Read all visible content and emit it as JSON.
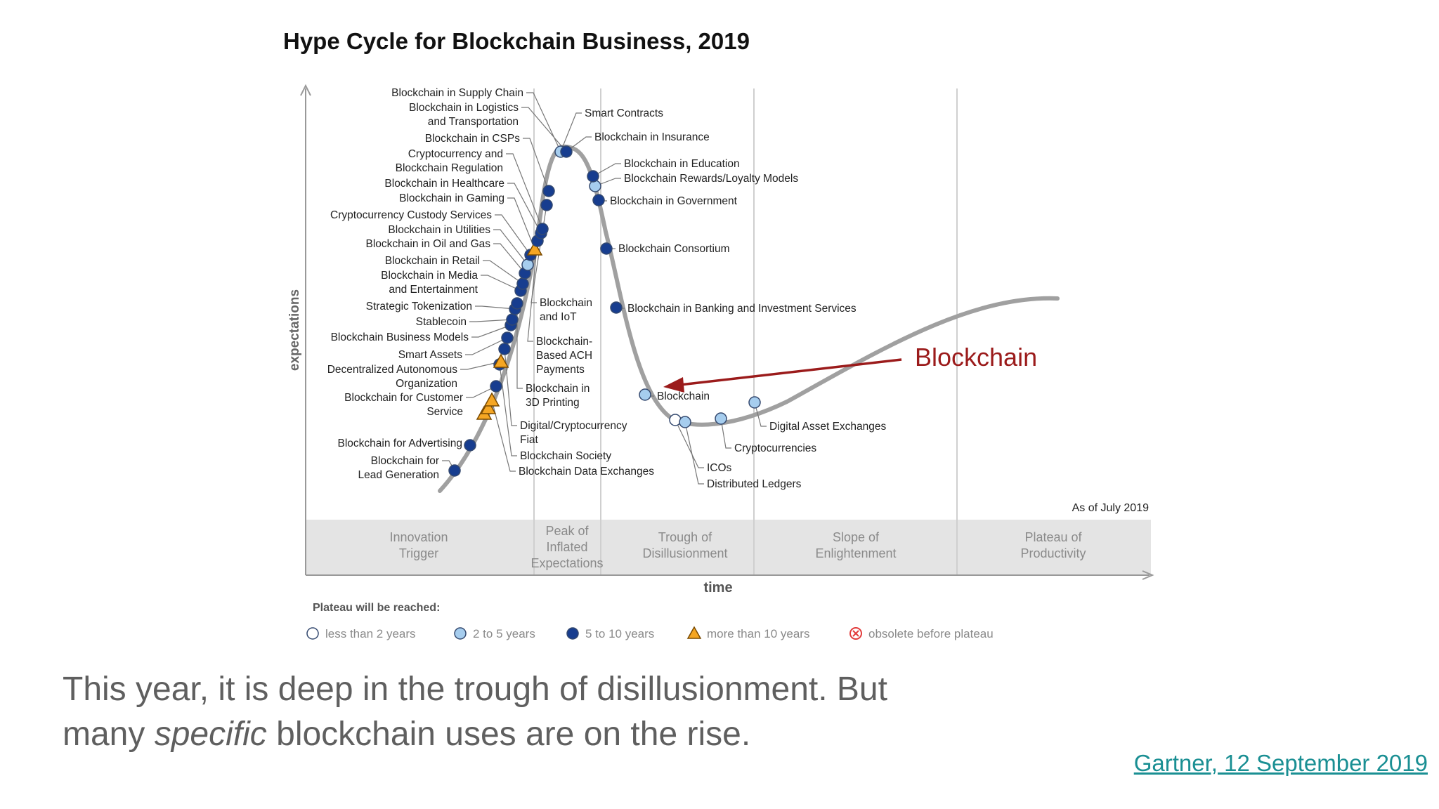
{
  "chart_data": {
    "type": "line",
    "title": "Hype Cycle for Blockchain Business, 2019",
    "xlabel": "time",
    "ylabel": "expectations",
    "as_of": "As of July 2019",
    "phases": [
      [
        "Innovation",
        "Trigger"
      ],
      [
        "Peak of",
        "Inflated",
        "Expectations"
      ],
      [
        "Trough of",
        "Disillusionment"
      ],
      [
        "Slope of",
        "Enlightenment"
      ],
      [
        "Plateau of",
        "Productivity"
      ]
    ],
    "legend_title": "Plateau will be reached:",
    "legend": [
      {
        "key": "lt2",
        "label": "less than 2 years"
      },
      {
        "key": "2to5",
        "label": "2 to 5 years"
      },
      {
        "key": "5to10",
        "label": "5 to 10 years"
      },
      {
        "key": "gt10",
        "label": "more than 10 years"
      },
      {
        "key": "obs",
        "label": "obsolete before plateau"
      }
    ],
    "colors": {
      "lt2": "#ffffff",
      "2to5": "#a6cdee",
      "5to10": "#173d8f",
      "gt10": "#f5a623",
      "obs": "#e23b3b",
      "curve": "#a0a0a0",
      "annotation": "#9b1b1b"
    },
    "annotation": "Blockchain",
    "left_labels": [
      [
        "Blockchain in Supply Chain"
      ],
      [
        "Blockchain in Logistics",
        "and Transportation"
      ],
      [
        "Blockchain in CSPs"
      ],
      [
        "Cryptocurrency and",
        "Blockchain Regulation"
      ],
      [
        "Blockchain in Healthcare"
      ],
      [
        "Blockchain in Gaming"
      ],
      [
        "Cryptocurrency Custody Services"
      ],
      [
        "Blockchain in Utilities"
      ],
      [
        "Blockchain in Oil and Gas"
      ],
      [
        "Blockchain in Retail"
      ],
      [
        "Blockchain in Media",
        "and Entertainment"
      ],
      [
        "Strategic Tokenization"
      ],
      [
        "Stablecoin"
      ],
      [
        "Blockchain Business Models"
      ],
      [
        "Smart Assets"
      ],
      [
        "Decentralized Autonomous",
        "Organization"
      ],
      [
        "Blockchain for Customer",
        "Service"
      ],
      [
        "Blockchain for Advertising"
      ],
      [
        "Blockchain for",
        "Lead Generation"
      ]
    ],
    "mid_labels": [
      [
        "Blockchain",
        "and IoT"
      ],
      [
        "Blockchain-",
        "Based ACH",
        "Payments"
      ],
      [
        "Blockchain in",
        "3D Printing"
      ],
      [
        "Digital/Cryptocurrency",
        "Fiat"
      ],
      [
        "Blockchain Society"
      ],
      [
        "Blockchain Data Exchanges"
      ]
    ],
    "right_labels": [
      [
        "Smart Contracts"
      ],
      [
        "Blockchain in Insurance"
      ],
      [
        "Blockchain in Education"
      ],
      [
        "Blockchain Rewards/Loyalty Models"
      ],
      [
        "Blockchain in Government"
      ],
      [
        "Blockchain Consortium"
      ],
      [
        "Blockchain in Banking and Investment Services"
      ],
      [
        "Blockchain"
      ],
      [
        "Digital Asset Exchanges"
      ],
      [
        "Cryptocurrencies"
      ],
      [
        "ICOs"
      ],
      [
        "Distributed Ledgers"
      ]
    ],
    "markers": {
      "rise": [
        "5to10",
        "5to10",
        "gt10",
        "gt10",
        "gt10",
        "5to10",
        "5to10",
        "gt10",
        "5to10",
        "5to10",
        "5to10",
        "5to10",
        "5to10",
        "5to10",
        "5to10",
        "5to10",
        "5to10",
        "2to5",
        "5to10",
        "gt10",
        "5to10",
        "5to10",
        "5to10",
        "5to10",
        "5to10",
        "2to5",
        "5to10"
      ],
      "fall": [
        "2to5",
        "5to10",
        "5to10",
        "5to10",
        "5to10"
      ],
      "trough": [
        "2to5",
        "lt2",
        "2to5",
        "2to5",
        "2to5"
      ]
    }
  },
  "caption": {
    "line1": "This year, it is deep in the trough of disillusionment. But",
    "line2_pre": "many ",
    "line2_em": "specific",
    "line2_post": " blockchain uses are on the rise."
  },
  "source": "Gartner, 12 September 2019"
}
